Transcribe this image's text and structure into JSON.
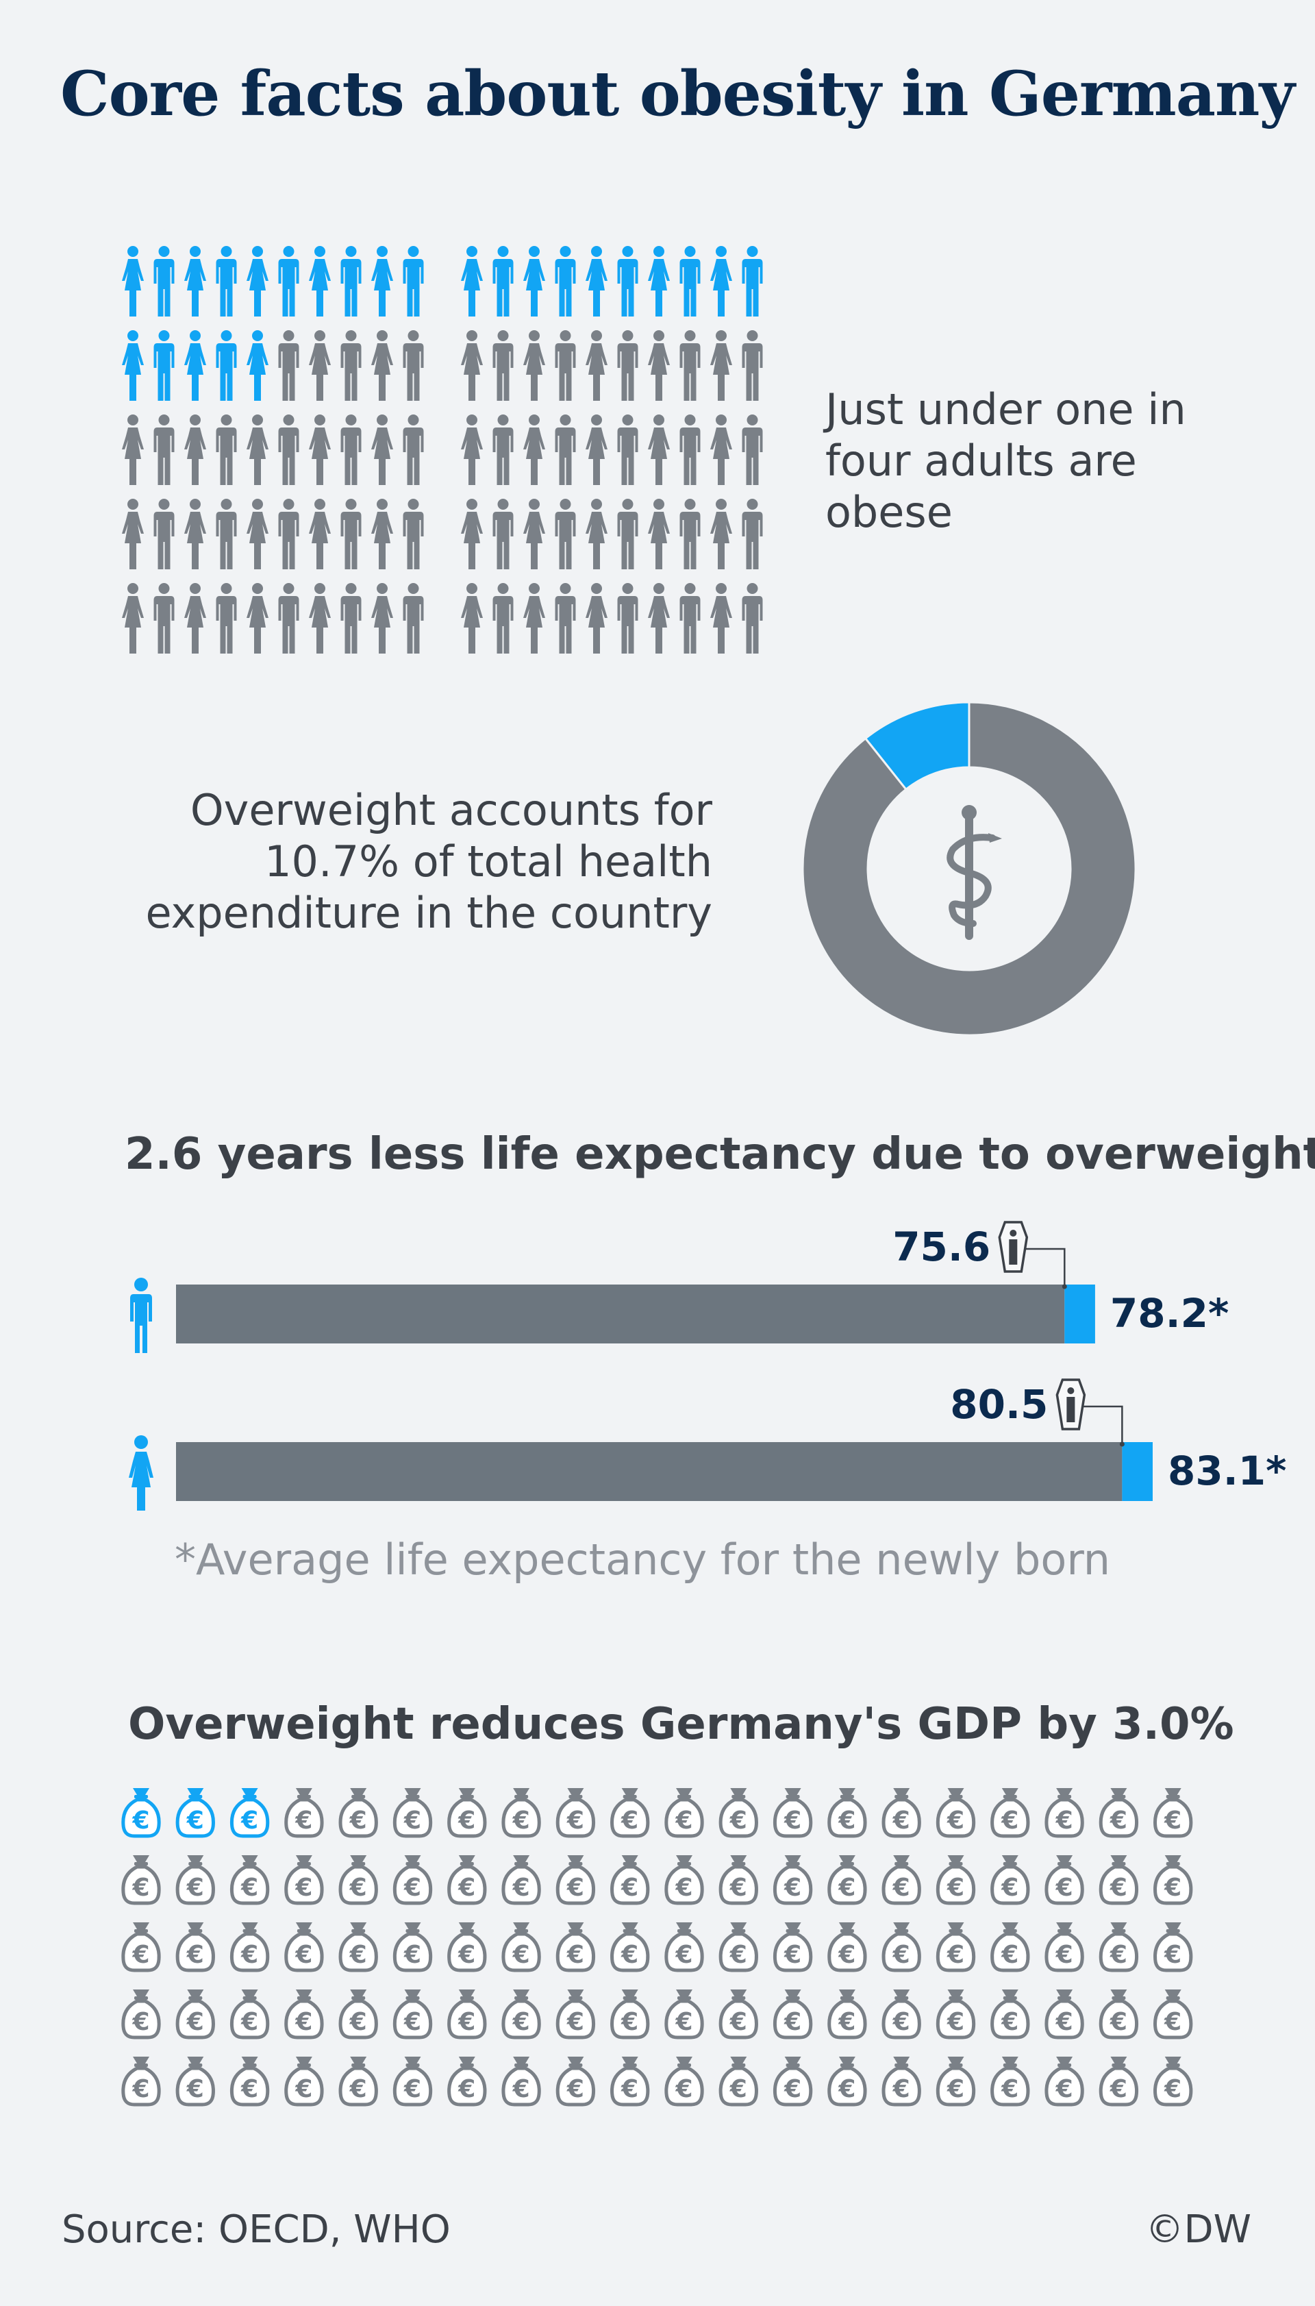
{
  "title": "Core facts about obesity in Germany",
  "colors": {
    "accent": "#12a5f4",
    "grey_icon": "#7a8087",
    "bar_grey": "#6c767f",
    "dark_blue": "#0b2a4e",
    "text": "#3c4148",
    "footnote": "#8e939a",
    "background": "#f1f3f5"
  },
  "obesity": {
    "text": "Just under one in four adults are obese",
    "icon": "person-icon"
  },
  "health": {
    "text": "Overweight accounts for 10.7% of total health expenditure in the country",
    "icon": "caduceus-icon"
  },
  "life": {
    "title": "2.6 years less life expectancy due to overweight",
    "footnote": "*Average life expectancy for the newly born",
    "icon": "coffin-icon"
  },
  "gdp": {
    "title": "Overweight reduces Germany's GDP by 3.0%",
    "icon": "money-bag-euro-icon",
    "symbol": "€"
  },
  "chart_data": [
    {
      "type": "pictograph",
      "text": "Just under one in four adults are obese",
      "total": 100,
      "highlighted": 25
    },
    {
      "type": "pie",
      "text": "Overweight accounts for 10.7% of total health expenditure in the country",
      "values": [
        10.7,
        89.3
      ],
      "units": "%"
    },
    {
      "type": "bar",
      "title": "2.6 years less life expectancy due to overweight",
      "categories": [
        "men",
        "women"
      ],
      "series": [
        {
          "values": [
            75.6,
            80.5
          ],
          "labels": [
            "75.6",
            "80.5"
          ]
        },
        {
          "values": [
            78.2,
            83.1
          ],
          "labels": [
            "78.2*",
            "83.1*"
          ]
        }
      ],
      "footnote": "*Average life expectancy for the newly born"
    },
    {
      "type": "pictograph",
      "title": "Overweight reduces Germany's GDP by 3.0%",
      "total": 100,
      "highlighted": 3
    }
  ],
  "footer": {
    "source": "Source: OECD, WHO",
    "credit": "©DW"
  }
}
